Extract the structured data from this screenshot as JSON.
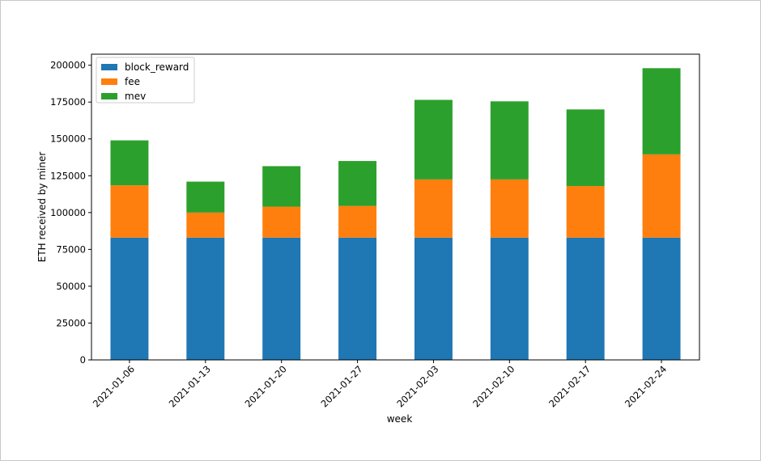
{
  "chart_data": {
    "type": "bar",
    "stacked": true,
    "categories": [
      "2021-01-06",
      "2021-01-13",
      "2021-01-20",
      "2021-01-27",
      "2021-02-03",
      "2021-02-10",
      "2021-02-17",
      "2021-02-24"
    ],
    "series": [
      {
        "name": "block_reward",
        "color": "#1f77b4",
        "values": [
          83000,
          83000,
          83000,
          83000,
          83000,
          83000,
          83000,
          83000
        ]
      },
      {
        "name": "fee",
        "color": "#ff7f0e",
        "values": [
          35500,
          17000,
          21000,
          21500,
          39500,
          39500,
          35000,
          56500
        ]
      },
      {
        "name": "mev",
        "color": "#2ca02c",
        "values": [
          30500,
          21000,
          27500,
          30500,
          54000,
          53000,
          52000,
          58500
        ]
      }
    ],
    "xlabel": "week",
    "ylabel": "ETH received by miner",
    "ylim": [
      0,
      207500
    ],
    "yticks": [
      0,
      25000,
      50000,
      75000,
      100000,
      125000,
      150000,
      175000,
      200000
    ],
    "legend_position": "top-left",
    "grid": false
  }
}
